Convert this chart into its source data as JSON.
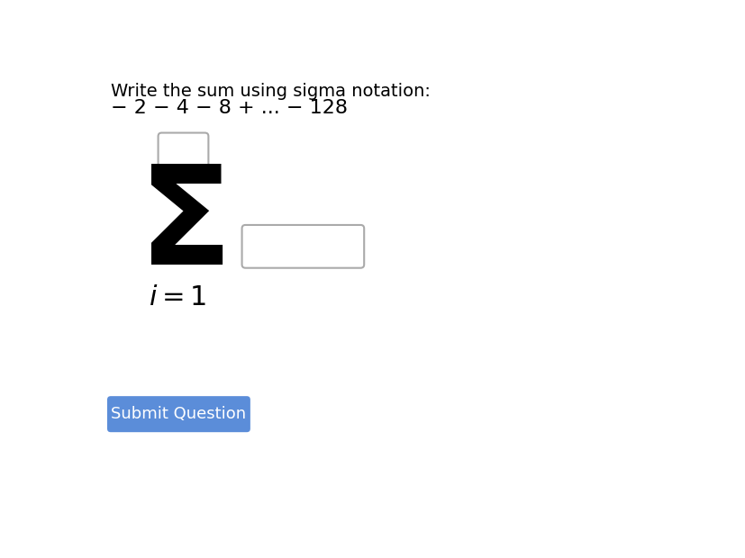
{
  "background_color": "#ffffff",
  "title_line1": "Write the sum using sigma notation:",
  "title_line2": "− 2 − 4 − 8 + ... − 128",
  "sigma_symbol": "Σ",
  "subscript": "$i = 1$",
  "submit_text": "Submit Question",
  "submit_bg": "#5b8dd9",
  "submit_text_color": "#ffffff",
  "text_color": "#000000",
  "title_fontsize": 14,
  "sigma_fontsize": 110,
  "subscript_fontsize": 22,
  "submit_fontsize": 13
}
